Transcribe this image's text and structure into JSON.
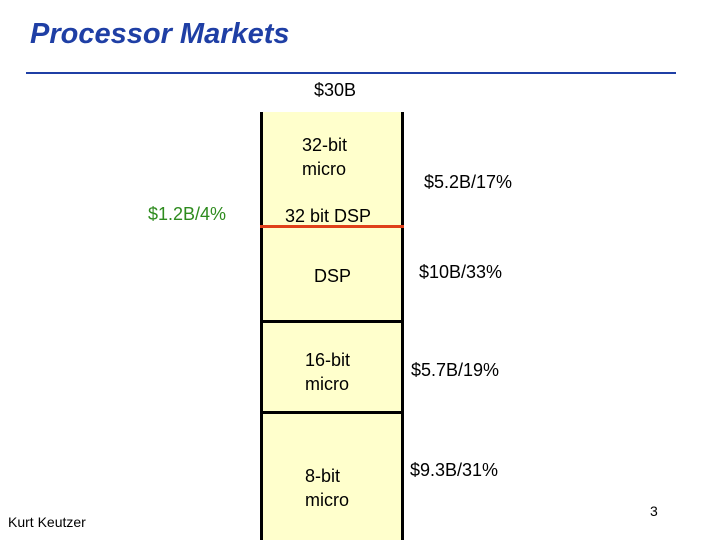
{
  "slide": {
    "title": "Processor Markets",
    "total": "$30B",
    "segments": [
      {
        "label": "32-bit micro",
        "side": "$5.2B/17%"
      },
      {
        "label": "32 bit DSP",
        "side": "$1.2B/4%"
      },
      {
        "label": "DSP",
        "side": "$10B/33%"
      },
      {
        "label": "16-bit micro",
        "side": "$5.7B/19%"
      },
      {
        "label": "8-bit micro",
        "side": "$9.3B/31%"
      }
    ],
    "colors": {
      "title": "#1f3fa5",
      "column_fill": "#ffffcc",
      "dsp_divider": "#e0401a",
      "small_segment_text": "#2e8b1e"
    },
    "footer_author": "Kurt Keutzer",
    "page_number": "3"
  }
}
